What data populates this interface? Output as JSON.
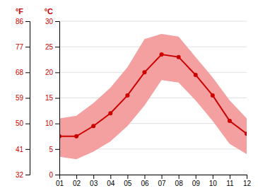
{
  "chart_data": {
    "type": "line",
    "ylabel": "°C",
    "y2label": "°F",
    "x": [
      1,
      2,
      3,
      4,
      5,
      6,
      7,
      8,
      9,
      10,
      11,
      12
    ],
    "xlim": [
      1,
      12
    ],
    "xticks": [
      {
        "value": 1,
        "label": "01"
      },
      {
        "value": 2,
        "label": "02"
      },
      {
        "value": 3,
        "label": "03"
      },
      {
        "value": 4,
        "label": "04"
      },
      {
        "value": 5,
        "label": "05"
      },
      {
        "value": 6,
        "label": "06"
      },
      {
        "value": 7,
        "label": "07"
      },
      {
        "value": 8,
        "label": "08"
      },
      {
        "value": 9,
        "label": "09"
      },
      {
        "value": 10,
        "label": "10"
      },
      {
        "value": 11,
        "label": "11"
      },
      {
        "value": 12,
        "label": "12"
      }
    ],
    "ylim": [
      0,
      30
    ],
    "yticks": [
      0,
      5,
      10,
      15,
      20,
      25,
      30
    ],
    "y2lim": [
      32,
      86
    ],
    "y2ticks": [
      32,
      41,
      50,
      59,
      68,
      77,
      86
    ],
    "grid": true,
    "series": [
      {
        "type": "band",
        "color": "#f4a0a0",
        "low": [
          3.5,
          3.0,
          4.5,
          6.5,
          9.5,
          13.5,
          18.5,
          18.0,
          14.5,
          10.5,
          6.0,
          4.0
        ],
        "high": [
          11.0,
          11.5,
          14.0,
          17.0,
          21.0,
          26.5,
          27.5,
          27.0,
          23.0,
          19.0,
          14.5,
          11.0
        ]
      },
      {
        "type": "line",
        "color": "#cc0000",
        "marker": "circle",
        "values": [
          7.5,
          7.5,
          9.5,
          12.0,
          15.5,
          20.0,
          23.5,
          23.0,
          19.5,
          15.5,
          10.5,
          8.0
        ]
      }
    ]
  }
}
